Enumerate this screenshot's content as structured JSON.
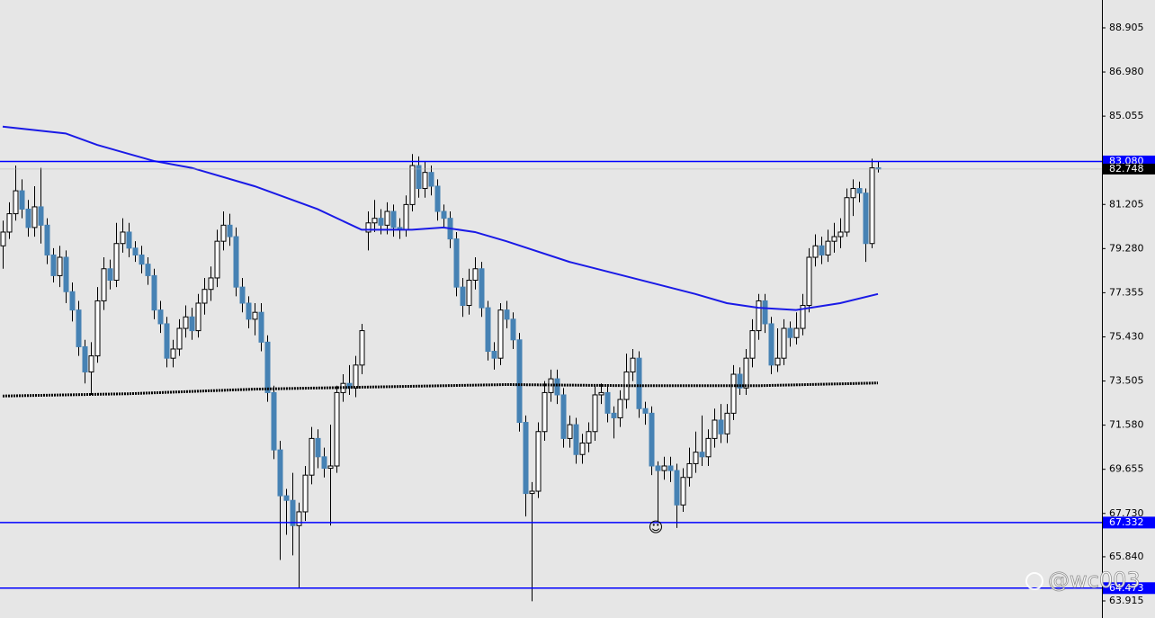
{
  "chart_data": {
    "type": "candlestick",
    "up_color": "#ffffff",
    "down_color": "#4682b4",
    "wick_color": "#000000",
    "open": [
      79.4,
      80.0,
      80.8,
      81.8,
      81.0,
      80.2,
      81.1,
      80.3,
      79.0,
      78.1,
      78.9,
      77.4,
      76.6,
      75.0,
      73.9,
      74.6,
      77.0,
      78.4,
      77.9,
      79.5,
      80.0,
      79.3,
      79.0,
      78.6,
      78.1,
      76.6,
      76.0,
      74.5,
      74.9,
      75.8,
      76.3,
      75.7,
      76.9,
      77.5,
      78.0,
      79.6,
      80.3,
      79.8,
      77.6,
      76.9,
      76.2,
      76.5,
      75.2,
      73.0,
      70.5,
      68.5,
      68.3,
      67.2,
      67.8,
      69.4,
      71.0,
      70.2,
      69.7,
      69.8,
      73.0,
      73.4,
      73.2,
      74.2,
      80.0,
      80.4,
      80.6,
      80.3,
      80.9,
      80.2,
      80.1,
      81.2,
      82.9,
      81.9,
      82.6,
      82.0,
      80.9,
      80.6,
      79.7,
      77.6,
      76.8,
      77.9,
      78.4,
      76.7,
      74.8,
      74.5,
      76.6,
      76.2,
      75.3,
      71.7,
      68.6,
      68.7,
      71.3,
      73.0,
      73.6,
      72.9,
      71.0,
      71.6,
      70.3,
      70.8,
      71.3,
      72.9,
      73.0,
      72.1,
      71.9,
      72.7,
      73.9,
      74.5,
      72.3,
      72.1,
      69.8,
      69.6,
      69.8,
      69.6,
      68.1,
      69.3,
      69.9,
      70.4,
      70.2,
      71.0,
      71.8,
      71.2,
      72.1,
      73.8,
      73.2,
      74.5,
      75.7,
      77.0,
      76.0,
      74.2,
      74.5,
      75.8,
      75.4,
      75.8,
      76.8,
      78.9,
      79.4,
      79.0,
      79.6,
      79.8,
      80.0,
      81.5,
      81.9,
      81.7,
      79.5,
      82.8
    ],
    "high": [
      80.5,
      81.3,
      82.9,
      82.3,
      81.4,
      82.0,
      82.8,
      80.6,
      79.3,
      79.4,
      79.2,
      77.8,
      77.0,
      75.3,
      75.2,
      77.6,
      78.9,
      78.8,
      80.4,
      80.6,
      80.4,
      79.6,
      79.4,
      78.9,
      78.4,
      77.0,
      76.3,
      75.3,
      76.2,
      76.8,
      76.7,
      77.3,
      78.0,
      78.5,
      80.1,
      80.9,
      80.8,
      80.2,
      78.0,
      77.2,
      76.9,
      76.9,
      75.5,
      73.3,
      70.9,
      68.8,
      69.5,
      68.2,
      69.8,
      71.5,
      71.4,
      70.6,
      71.6,
      73.3,
      73.8,
      74.2,
      74.6,
      76.0,
      80.9,
      81.4,
      81.0,
      81.3,
      81.2,
      80.6,
      81.6,
      83.4,
      83.3,
      83.1,
      82.9,
      82.3,
      81.2,
      80.9,
      80.0,
      78.0,
      78.4,
      78.9,
      78.7,
      77.0,
      75.2,
      76.9,
      77.0,
      76.5,
      75.6,
      72.0,
      69.1,
      71.7,
      73.5,
      74.0,
      74.0,
      73.2,
      72.0,
      71.9,
      71.2,
      71.7,
      73.3,
      73.4,
      73.3,
      72.4,
      73.1,
      74.7,
      74.9,
      74.8,
      72.6,
      72.4,
      70.0,
      70.2,
      70.2,
      69.9,
      69.7,
      70.6,
      71.3,
      72.0,
      71.4,
      72.3,
      72.5,
      72.5,
      74.2,
      74.1,
      74.9,
      76.2,
      77.3,
      77.3,
      76.3,
      75.8,
      76.2,
      76.1,
      76.5,
      77.3,
      79.3,
      79.9,
      79.8,
      80.1,
      80.4,
      80.6,
      81.9,
      82.3,
      82.2,
      81.9,
      83.2,
      83.1
    ],
    "low": [
      78.4,
      79.7,
      80.5,
      80.6,
      79.8,
      79.8,
      79.5,
      78.6,
      77.8,
      77.6,
      76.9,
      76.1,
      74.6,
      73.4,
      72.9,
      74.3,
      76.6,
      77.5,
      77.6,
      79.1,
      78.9,
      78.7,
      78.2,
      77.7,
      76.2,
      75.6,
      74.1,
      74.1,
      74.6,
      75.4,
      75.3,
      75.4,
      76.4,
      77.0,
      77.6,
      79.2,
      79.4,
      77.2,
      76.5,
      75.8,
      75.5,
      74.8,
      72.6,
      70.1,
      65.7,
      66.8,
      65.9,
      64.45,
      67.4,
      69.0,
      69.7,
      69.3,
      67.2,
      69.5,
      72.6,
      72.9,
      72.8,
      73.8,
      79.2,
      80.0,
      79.9,
      79.9,
      79.8,
      79.7,
      79.8,
      80.9,
      81.5,
      81.5,
      81.6,
      80.5,
      80.2,
      79.3,
      77.2,
      76.3,
      76.4,
      77.5,
      76.3,
      74.4,
      74.0,
      74.2,
      75.8,
      74.9,
      71.3,
      67.6,
      63.9,
      68.4,
      70.9,
      72.6,
      72.5,
      70.6,
      70.6,
      69.9,
      69.9,
      70.4,
      70.9,
      72.5,
      71.7,
      71.0,
      71.5,
      72.3,
      73.5,
      71.9,
      71.6,
      69.4,
      67.4,
      69.2,
      69.1,
      67.1,
      67.8,
      68.9,
      69.5,
      69.8,
      69.8,
      70.6,
      70.8,
      70.8,
      71.8,
      72.9,
      72.9,
      74.1,
      75.3,
      75.6,
      73.8,
      73.9,
      74.2,
      75.0,
      75.1,
      75.5,
      76.5,
      78.5,
      78.6,
      78.7,
      79.1,
      79.3,
      79.8,
      80.7,
      81.3,
      78.7,
      79.3,
      82.6
    ],
    "close": [
      80.0,
      80.8,
      81.8,
      81.0,
      80.2,
      81.1,
      80.3,
      79.0,
      78.1,
      78.9,
      77.4,
      76.6,
      75.0,
      73.9,
      74.6,
      77.0,
      78.4,
      77.9,
      79.5,
      80.0,
      79.3,
      79.0,
      78.6,
      78.1,
      76.6,
      76.0,
      74.5,
      74.9,
      75.8,
      76.3,
      75.7,
      76.9,
      77.5,
      78.0,
      79.6,
      80.3,
      79.8,
      77.6,
      76.9,
      76.2,
      76.5,
      75.2,
      73.0,
      70.5,
      68.5,
      68.3,
      67.2,
      67.8,
      69.4,
      71.0,
      70.2,
      69.7,
      69.8,
      73.0,
      73.4,
      73.2,
      74.2,
      75.7,
      80.4,
      80.6,
      80.3,
      80.9,
      80.2,
      80.1,
      81.2,
      82.9,
      81.9,
      82.6,
      82.0,
      80.9,
      80.6,
      79.7,
      77.6,
      76.8,
      77.9,
      78.4,
      76.7,
      74.8,
      74.5,
      76.6,
      76.2,
      75.3,
      71.7,
      68.6,
      68.7,
      71.3,
      73.0,
      73.6,
      72.9,
      71.0,
      71.6,
      70.3,
      70.8,
      71.3,
      72.9,
      73.0,
      72.1,
      71.9,
      72.7,
      73.9,
      74.5,
      72.3,
      72.1,
      69.8,
      69.6,
      69.8,
      69.6,
      68.1,
      69.3,
      69.9,
      70.4,
      70.2,
      71.0,
      71.8,
      71.2,
      72.1,
      73.8,
      73.2,
      74.5,
      75.7,
      77.0,
      76.0,
      74.2,
      74.5,
      75.8,
      75.4,
      75.8,
      76.8,
      78.9,
      79.4,
      79.0,
      79.6,
      79.8,
      80.0,
      81.5,
      81.9,
      81.7,
      79.5,
      82.8,
      82.75
    ],
    "moving_averages": [
      {
        "color": "#1a1ae6",
        "x": [
          0,
          10,
          15,
          24,
          30,
          40,
          50,
          57,
          65,
          70,
          75,
          80,
          90,
          100,
          110,
          115,
          120,
          126,
          133,
          139
        ],
        "values": [
          84.6,
          84.3,
          83.8,
          83.1,
          82.8,
          82.0,
          81.0,
          80.1,
          80.1,
          80.2,
          80.0,
          79.6,
          78.7,
          78.0,
          77.3,
          76.9,
          76.7,
          76.6,
          76.9,
          77.3
        ]
      },
      {
        "color": "#000000",
        "x": [
          0,
          20,
          40,
          60,
          80,
          100,
          120,
          139
        ],
        "values": [
          72.85,
          72.95,
          73.15,
          73.25,
          73.35,
          73.3,
          73.3,
          73.42
        ]
      }
    ],
    "hlines": [
      {
        "value": 83.08,
        "label": "83.080"
      },
      67.332,
      64.473
    ],
    "hline_color": "#0000ff",
    "last_price": 82.748,
    "ylim": [
      63.17,
      90.12
    ],
    "yticks": [
      88.905,
      {
        "value": 86.98,
        "label": "86.980"
      },
      85.055,
      81.205,
      {
        "value": 79.28,
        "label": "79.280"
      },
      77.355,
      {
        "value": 75.43,
        "label": "75.430"
      },
      73.505,
      {
        "value": 71.58,
        "label": "71.580"
      },
      69.655,
      {
        "value": 67.73,
        "label": "67.730"
      },
      {
        "value": 65.84,
        "label": "65.840"
      },
      63.915
    ],
    "annotation": "☺",
    "watermark": "@wc003"
  }
}
